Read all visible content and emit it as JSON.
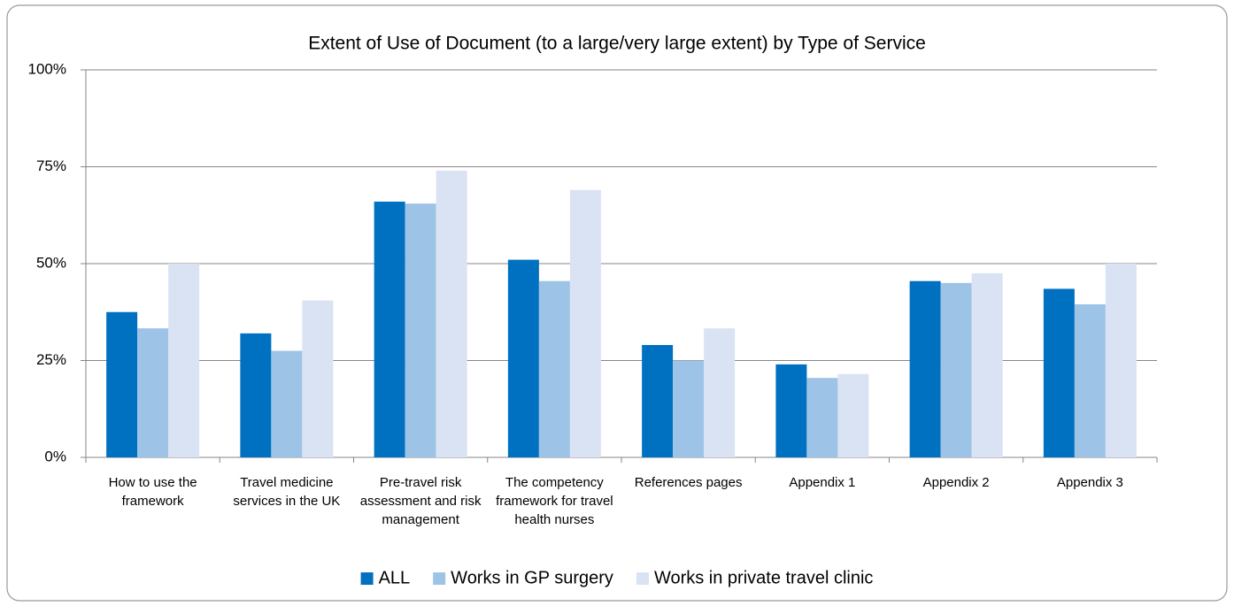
{
  "chart_data": {
    "type": "bar",
    "title": "Extent of Use of Document (to a large/very large extent) by Type of Service",
    "categories": [
      "How to use the framework",
      "Travel medicine services in the UK",
      "Pre-travel risk assessment and risk management",
      "The competency framework for travel health nurses",
      "References pages",
      "Appendix 1",
      "Appendix 2",
      "Appendix 3"
    ],
    "series": [
      {
        "name": "ALL",
        "color": "#0070c0",
        "values": [
          37.5,
          32,
          66,
          51,
          29,
          24,
          45.5,
          43.5
        ]
      },
      {
        "name": "Works in GP surgery",
        "color": "#9dc3e6",
        "values": [
          33.3,
          27.5,
          65.5,
          45.5,
          25,
          20.5,
          45,
          39.5
        ]
      },
      {
        "name": "Works in private travel clinic",
        "color": "#dae3f3",
        "values": [
          50,
          40.5,
          74,
          69,
          33.3,
          21.5,
          47.5,
          50
        ]
      }
    ],
    "ylim": [
      0,
      100
    ],
    "yticks": [
      {
        "value": 0,
        "label": "0%"
      },
      {
        "value": 25,
        "label": "25%"
      },
      {
        "value": 50,
        "label": "50%"
      },
      {
        "value": 75,
        "label": "75%"
      },
      {
        "value": 100,
        "label": "100%"
      }
    ],
    "grid": true,
    "legend": "bottom"
  }
}
